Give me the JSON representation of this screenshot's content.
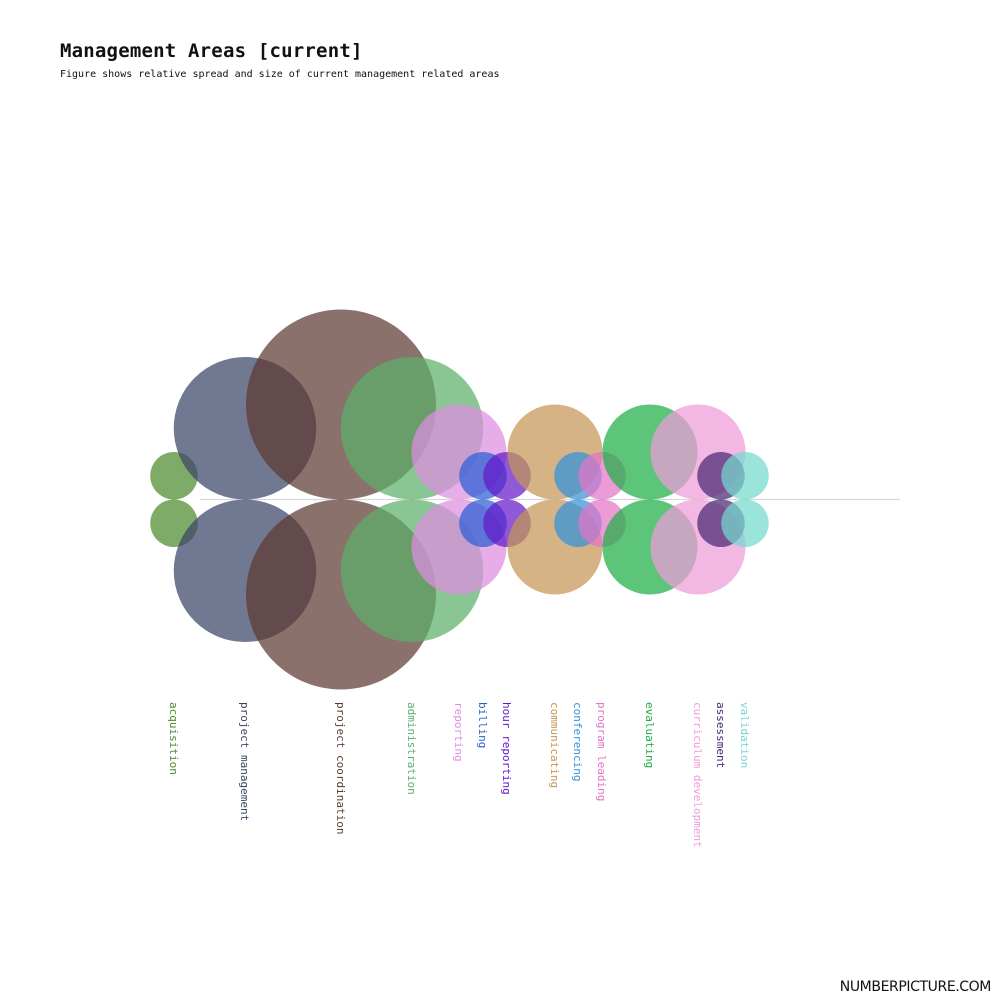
{
  "chart_data": {
    "type": "bubble-mirror",
    "title": "Management Areas [current]",
    "subtitle": "Figure shows relative spread and size of current management related areas",
    "series": [
      {
        "name": "acquisition",
        "size": 1,
        "color": "#4d8a2e"
      },
      {
        "name": "project management",
        "size": 3,
        "color": "#3a4466"
      },
      {
        "name": "project coordination",
        "size": 4,
        "color": "#5e3a33"
      },
      {
        "name": "administration",
        "size": 3,
        "color": "#5cb06b"
      },
      {
        "name": "reporting",
        "size": 2,
        "color": "#de8ee0"
      },
      {
        "name": "billing",
        "size": 1,
        "color": "#2b5ed6"
      },
      {
        "name": "hour reporting",
        "size": 1,
        "color": "#6419c9"
      },
      {
        "name": "communicating",
        "size": 2,
        "color": "#c59656"
      },
      {
        "name": "conferencing",
        "size": 1,
        "color": "#3392dc"
      },
      {
        "name": "program leading",
        "size": 1,
        "color": "#e374c6"
      },
      {
        "name": "evaluating",
        "size": 2,
        "color": "#1fae45"
      },
      {
        "name": "curriculum development",
        "size": 2,
        "color": "#ee9bda"
      },
      {
        "name": "assessment",
        "size": 1,
        "color": "#4a2871"
      },
      {
        "name": "validation",
        "size": 1,
        "color": "#74d9cf"
      }
    ]
  },
  "footer": {
    "brand": "NUMBERPICTURE.COM"
  }
}
